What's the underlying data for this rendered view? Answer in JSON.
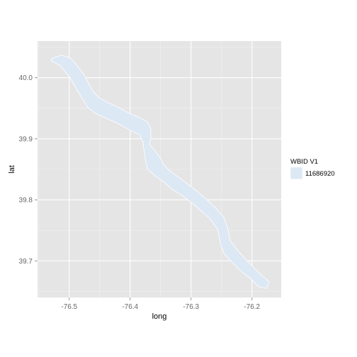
{
  "chart_data": {
    "type": "map",
    "xlabel": "long",
    "ylabel": "lat",
    "xlim": [
      -76.552,
      -76.152
    ],
    "ylim": [
      39.64,
      40.06
    ],
    "x_ticks": [
      -76.5,
      -76.4,
      -76.3,
      -76.2
    ],
    "x_tick_labels": [
      "-76.5",
      "-76.4",
      "-76.3",
      "-76.2"
    ],
    "x_minor": [
      -76.55,
      -76.45,
      -76.35,
      -76.25,
      -76.15
    ],
    "y_ticks": [
      39.7,
      39.8,
      39.9,
      40.0
    ],
    "y_tick_labels": [
      "39.7",
      "39.8",
      "39.9",
      "40.0"
    ],
    "y_minor": [
      39.65,
      39.75,
      39.85,
      39.95,
      40.05
    ],
    "grid": true,
    "legend": {
      "title": "WBID V1",
      "placement": "right",
      "entries": [
        {
          "label": "11686920",
          "color": "#dde8f5"
        }
      ]
    },
    "series": [
      {
        "name": "11686920",
        "color": "#dde8f5",
        "outline": "#ffffff",
        "polygon": [
          [
            -76.528,
            40.032
          ],
          [
            -76.512,
            40.037
          ],
          [
            -76.498,
            40.032
          ],
          [
            -76.487,
            40.02
          ],
          [
            -76.476,
            40.005
          ],
          [
            -76.468,
            39.99
          ],
          [
            -76.461,
            39.978
          ],
          [
            -76.452,
            39.968
          ],
          [
            -76.438,
            39.96
          ],
          [
            -76.42,
            39.952
          ],
          [
            -76.402,
            39.942
          ],
          [
            -76.385,
            39.935
          ],
          [
            -76.372,
            39.928
          ],
          [
            -76.366,
            39.916
          ],
          [
            -76.366,
            39.9
          ],
          [
            -76.368,
            39.891
          ],
          [
            -76.359,
            39.88
          ],
          [
            -76.35,
            39.868
          ],
          [
            -76.345,
            39.858
          ],
          [
            -76.336,
            39.848
          ],
          [
            -76.322,
            39.838
          ],
          [
            -76.306,
            39.826
          ],
          [
            -76.29,
            39.814
          ],
          [
            -76.274,
            39.8
          ],
          [
            -76.26,
            39.787
          ],
          [
            -76.246,
            39.771
          ],
          [
            -76.239,
            39.75
          ],
          [
            -76.236,
            39.733
          ],
          [
            -76.224,
            39.718
          ],
          [
            -76.208,
            39.7
          ],
          [
            -76.19,
            39.682
          ],
          [
            -76.172,
            39.666
          ],
          [
            -76.176,
            39.655
          ],
          [
            -76.19,
            39.658
          ],
          [
            -76.2,
            39.669
          ],
          [
            -76.218,
            39.683
          ],
          [
            -76.234,
            39.699
          ],
          [
            -76.246,
            39.712
          ],
          [
            -76.252,
            39.729
          ],
          [
            -76.256,
            39.751
          ],
          [
            -76.27,
            39.77
          ],
          [
            -76.286,
            39.784
          ],
          [
            -76.3,
            39.796
          ],
          [
            -76.316,
            39.808
          ],
          [
            -76.332,
            39.818
          ],
          [
            -76.346,
            39.83
          ],
          [
            -76.36,
            39.84
          ],
          [
            -76.372,
            39.851
          ],
          [
            -76.375,
            39.866
          ],
          [
            -76.377,
            39.88
          ],
          [
            -76.379,
            39.894
          ],
          [
            -76.384,
            39.906
          ],
          [
            -76.4,
            39.914
          ],
          [
            -76.42,
            39.925
          ],
          [
            -76.44,
            39.934
          ],
          [
            -76.458,
            39.942
          ],
          [
            -76.47,
            39.952
          ],
          [
            -76.48,
            39.968
          ],
          [
            -76.49,
            39.985
          ],
          [
            -76.5,
            40.002
          ],
          [
            -76.515,
            40.02
          ],
          [
            -76.53,
            40.028
          ]
        ]
      }
    ]
  }
}
